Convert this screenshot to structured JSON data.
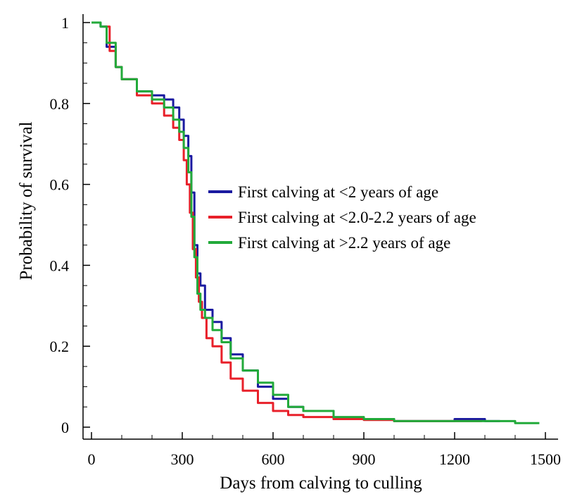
{
  "chart_data": {
    "type": "line",
    "title": "",
    "xlabel": "Days from calving to culling",
    "ylabel": "Probability of survival",
    "xlim": [
      0,
      1500
    ],
    "ylim": [
      0,
      1
    ],
    "xticks": [
      0,
      300,
      600,
      900,
      1200,
      1500
    ],
    "xtick_labels": [
      "0",
      "300",
      "600",
      "900",
      "1200",
      "1500"
    ],
    "yticks": [
      0,
      0.2,
      0.4,
      0.6,
      0.8,
      1
    ],
    "ytick_labels": [
      "0",
      "0.2",
      "0.4",
      "0.6",
      "0.8",
      "1"
    ],
    "grid": false,
    "legend_position": "center-right",
    "step": true,
    "series": [
      {
        "name": "First calving at <2 years of age",
        "color": "#1a1aa0",
        "x": [
          0,
          30,
          50,
          80,
          100,
          150,
          200,
          240,
          270,
          290,
          305,
          320,
          330,
          340,
          350,
          360,
          375,
          400,
          430,
          460,
          500,
          550,
          600,
          650,
          700,
          800,
          900,
          1000,
          1100,
          1200,
          1300,
          1350
        ],
        "y": [
          1,
          0.99,
          0.94,
          0.89,
          0.86,
          0.83,
          0.82,
          0.81,
          0.79,
          0.76,
          0.72,
          0.67,
          0.58,
          0.45,
          0.38,
          0.35,
          0.29,
          0.26,
          0.22,
          0.18,
          0.14,
          0.1,
          0.07,
          0.05,
          0.04,
          0.02,
          0.02,
          0.015,
          0.015,
          0.02,
          0.015,
          0.015
        ]
      },
      {
        "name": "First calving at <2.0-2.2 years of age",
        "color": "#e8202a",
        "x": [
          40,
          60,
          80,
          100,
          150,
          200,
          240,
          270,
          290,
          305,
          315,
          325,
          335,
          345,
          355,
          365,
          380,
          400,
          430,
          460,
          500,
          550,
          600,
          650,
          700,
          800,
          900,
          1000,
          1100,
          1200,
          1290
        ],
        "y": [
          0.99,
          0.93,
          0.89,
          0.86,
          0.82,
          0.8,
          0.77,
          0.74,
          0.71,
          0.66,
          0.6,
          0.53,
          0.44,
          0.37,
          0.31,
          0.27,
          0.22,
          0.2,
          0.16,
          0.12,
          0.09,
          0.06,
          0.04,
          0.03,
          0.025,
          0.02,
          0.018,
          0.015,
          0.015,
          0.015,
          0.015
        ]
      },
      {
        "name": "First calving at >2.2 years of age",
        "color": "#22aa3a",
        "x": [
          0,
          30,
          50,
          80,
          100,
          150,
          200,
          240,
          270,
          290,
          305,
          320,
          330,
          340,
          350,
          360,
          375,
          400,
          430,
          460,
          500,
          550,
          600,
          650,
          700,
          800,
          900,
          1000,
          1100,
          1200,
          1300,
          1400,
          1480
        ],
        "y": [
          1,
          0.99,
          0.95,
          0.89,
          0.86,
          0.83,
          0.81,
          0.79,
          0.76,
          0.73,
          0.69,
          0.63,
          0.52,
          0.42,
          0.33,
          0.29,
          0.27,
          0.24,
          0.21,
          0.17,
          0.14,
          0.11,
          0.08,
          0.05,
          0.04,
          0.025,
          0.02,
          0.015,
          0.015,
          0.015,
          0.015,
          0.01,
          0.01
        ]
      }
    ]
  }
}
